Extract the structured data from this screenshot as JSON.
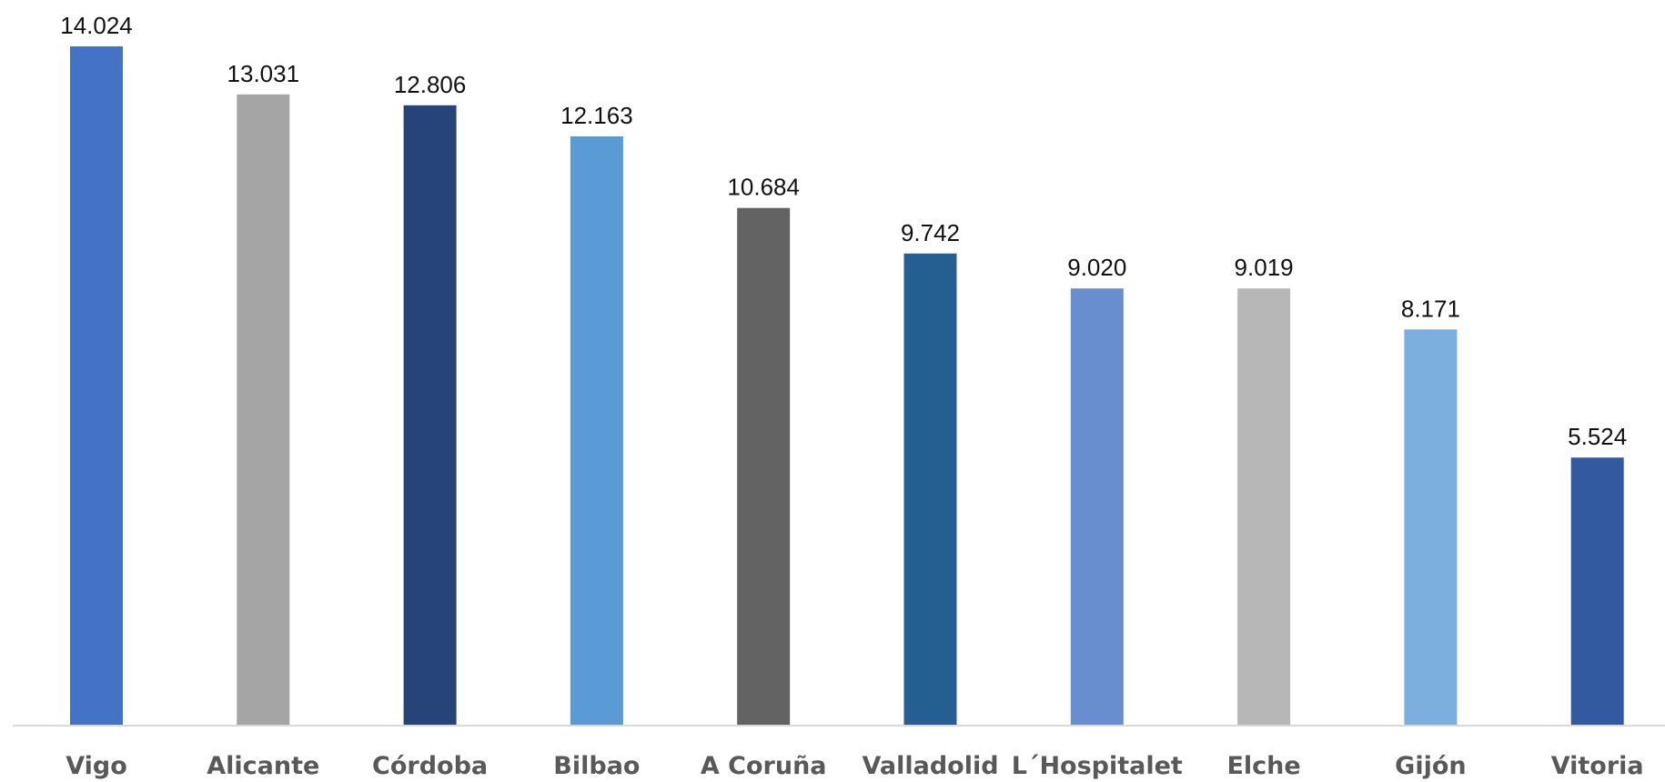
{
  "chart_data": {
    "type": "bar",
    "categories": [
      "Vigo",
      "Alicante",
      "Córdoba",
      "Bilbao",
      "A Coruña",
      "Valladolid",
      "L´Hospitalet",
      "Elche",
      "Gijón",
      "Vitoria"
    ],
    "values": [
      14024,
      13031,
      12806,
      12163,
      10684,
      9742,
      9020,
      9019,
      8171,
      5524
    ],
    "value_labels": [
      "14.024",
      "13.031",
      "12.806",
      "12.163",
      "10.684",
      "9.742",
      "9.020",
      "9.019",
      "8.171",
      "5.524"
    ],
    "colors": [
      "#4472c4",
      "#a5a5a5",
      "#264478",
      "#5b9bd5",
      "#636363",
      "#255e91",
      "#698ed0",
      "#b7b7b7",
      "#7cafdd",
      "#335aa1"
    ],
    "ylim": [
      0,
      14024
    ],
    "axis_color": "#d9d9d9",
    "grid": false,
    "legend": "none",
    "title": "",
    "xlabel": "",
    "ylabel": ""
  }
}
